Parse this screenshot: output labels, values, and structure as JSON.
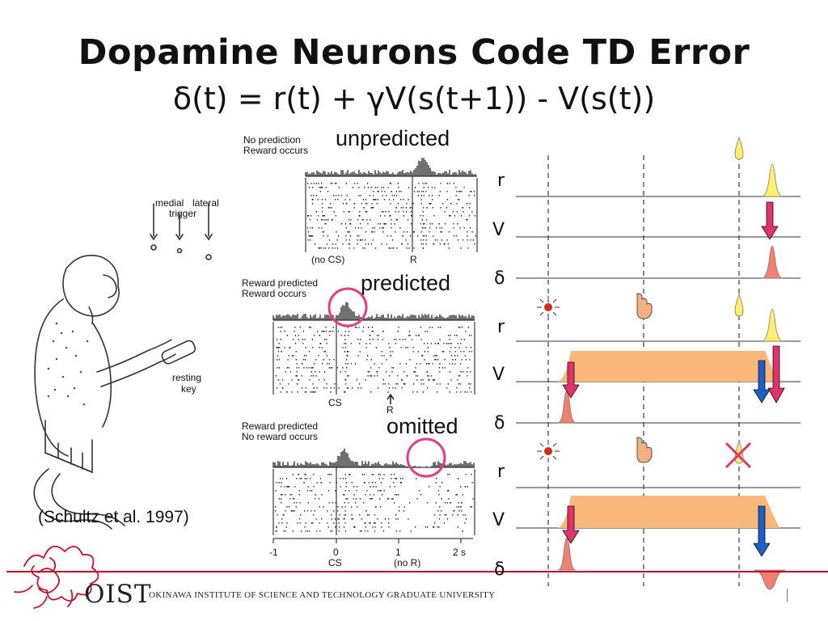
{
  "title": "Dopamine Neurons Code TD Error",
  "formula": "δ(t) = r(t) + γV(s(t+1)) - V(s(t))",
  "left_figure": {
    "labels": {
      "medial": "medial",
      "lateral": "lateral",
      "trigger": "trigger",
      "resting": "resting",
      "key": "key"
    }
  },
  "citation": "(Schultz et al. 1997)",
  "panels": {
    "unpredicted": {
      "heading": "unpredicted",
      "line1": "No prediction",
      "line2": "Reward occurs",
      "marker_nocs": "(no CS)",
      "marker_r": "R"
    },
    "predicted": {
      "heading": "predicted",
      "line1": "Reward predicted",
      "line2": "Reward occurs",
      "marker_cs": "CS",
      "marker_r": "R"
    },
    "omitted": {
      "heading": "omitted",
      "line1": "Reward predicted",
      "line2": "No reward occurs"
    },
    "axis": {
      "ticks": [
        "-1",
        "0",
        "1",
        "2 s"
      ],
      "cs": "CS",
      "nor": "(no R)"
    }
  },
  "td_labels": {
    "r": "r",
    "v": "V",
    "delta": "δ"
  },
  "footer": {
    "oist": "OIST",
    "institute": "OKINAWA INSTITUTE OF SCIENCE AND TECHNOLOGY GRADUATE UNIVERSITY"
  },
  "colors": {
    "arrow_red": "#e2336b",
    "arrow_blue": "#1d5fc6",
    "band": "#f9b77a",
    "reward": "#ffef6b",
    "delta": "#f08070",
    "circle": "#e63d7c",
    "footer_line": "#c8102e"
  }
}
